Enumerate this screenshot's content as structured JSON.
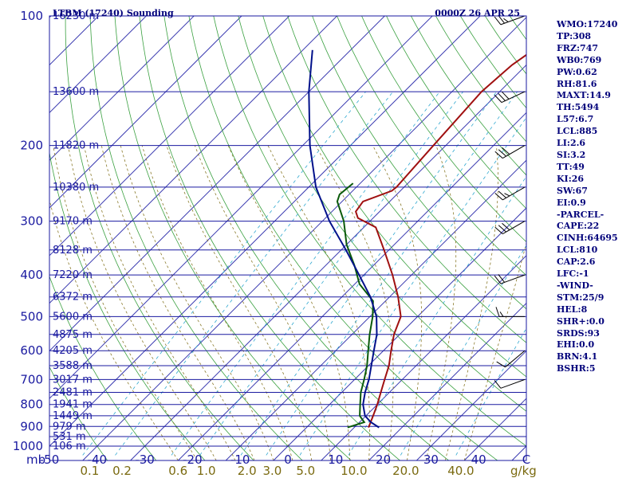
{
  "header": {
    "station": "LTBM (17240) Sounding",
    "time": "0000Z 26 APR 25"
  },
  "params": [
    "WMO:17240",
    "TP:308",
    "FRZ:747",
    "WB0:769",
    "PW:0.62",
    "RH:81.6",
    "MAXT:14.9",
    "TH:5494",
    "L57:6.7",
    "LCL:885",
    "LI:2.6",
    "SI:3.2",
    "TT:49",
    "KI:26",
    "SW:67",
    "EI:0.9",
    "-PARCEL-",
    "CAPE:22",
    "CINH:64695",
    "LCL:810",
    "CAP:2.6",
    "LFC:-1",
    "-WIND-",
    "STM:25/9",
    "HEL:8",
    "SHR+:0.0",
    "SRDS:93",
    "EHI:0.0",
    "BRN:4.1",
    "BSHR:5"
  ],
  "colors": {
    "isobar": "#1a1aa0",
    "isotherm": "#3a3ab0",
    "dry_adiabat": "#3aa040",
    "moist_adiabat": "#8a7a2a",
    "mixing_ratio": "#30a8d0",
    "temperature": "#a01010",
    "dewpoint": "#0a5a0a",
    "parcel": "#00108a",
    "wind": "#000000"
  },
  "chart_data": {
    "type": "line",
    "title": "LTBM (17240) Sounding",
    "subtitle": "0000Z 26 APR 25",
    "xlabel": "",
    "ylabel": "mb",
    "log_y": true,
    "skew_t": true,
    "grid": true,
    "xlim": [
      -50,
      50
    ],
    "ylim": [
      1000,
      100
    ],
    "pressure_ticks": [
      {
        "p": 100,
        "label": "100"
      },
      {
        "p": 200,
        "label": "200"
      },
      {
        "p": 300,
        "label": "300"
      },
      {
        "p": 400,
        "label": "400"
      },
      {
        "p": 500,
        "label": "500"
      },
      {
        "p": 600,
        "label": "600"
      },
      {
        "p": 700,
        "label": "700"
      },
      {
        "p": 800,
        "label": "800"
      },
      {
        "p": 900,
        "label": "900"
      },
      {
        "p": 1000,
        "label": "1000"
      }
    ],
    "temperature_ticks": [
      {
        "t": -50,
        "label": "-50"
      },
      {
        "t": -40,
        "label": "-40"
      },
      {
        "t": -30,
        "label": "-30"
      },
      {
        "t": -20,
        "label": "-20"
      },
      {
        "t": -10,
        "label": "-10"
      },
      {
        "t": 0,
        "label": "0"
      },
      {
        "t": 10,
        "label": "10"
      },
      {
        "t": 20,
        "label": "20"
      },
      {
        "t": 30,
        "label": "30"
      },
      {
        "t": 40,
        "label": "40"
      },
      {
        "t": 50,
        "label": "C"
      }
    ],
    "altitude_labels": [
      {
        "p": 100,
        "label": "16230 m"
      },
      {
        "p": 150,
        "label": "13600 m"
      },
      {
        "p": 200,
        "label": "11820 m"
      },
      {
        "p": 250,
        "label": "10380 m"
      },
      {
        "p": 300,
        "label": "9170 m"
      },
      {
        "p": 350,
        "label": "8128 m"
      },
      {
        "p": 400,
        "label": "7220 m"
      },
      {
        "p": 450,
        "label": "6372 m"
      },
      {
        "p": 500,
        "label": "5600 m"
      },
      {
        "p": 550,
        "label": "4875 m"
      },
      {
        "p": 600,
        "label": "4205 m"
      },
      {
        "p": 650,
        "label": "3588 m"
      },
      {
        "p": 700,
        "label": "3017 m"
      },
      {
        "p": 750,
        "label": "2481 m"
      },
      {
        "p": 800,
        "label": "1941 m"
      },
      {
        "p": 850,
        "label": "1449 m"
      },
      {
        "p": 900,
        "label": "979 m"
      },
      {
        "p": 950,
        "label": "531 m"
      },
      {
        "p": 1000,
        "label": "106 m"
      }
    ],
    "mixing_ratio_labels": [
      {
        "w": 0.1,
        "label": "0.1"
      },
      {
        "w": 0.2,
        "label": "0.2"
      },
      {
        "w": 0.6,
        "label": "0.6"
      },
      {
        "w": 1.0,
        "label": "1.0"
      },
      {
        "w": 2.0,
        "label": "2.0"
      },
      {
        "w": 3.0,
        "label": "3.0"
      },
      {
        "w": 5.0,
        "label": "5.0"
      },
      {
        "w": 10.0,
        "label": "10.0"
      },
      {
        "w": 20.0,
        "label": "20.0"
      },
      {
        "w": 40.0,
        "label": "40.0"
      }
    ],
    "mixing_ratio_unit": "g/kg",
    "series": [
      {
        "key": "temperature",
        "points": [
          [
            905,
            13.0
          ],
          [
            850,
            11.5
          ],
          [
            800,
            10.0
          ],
          [
            750,
            8.2
          ],
          [
            700,
            6.3
          ],
          [
            650,
            4.3
          ],
          [
            600,
            1.6
          ],
          [
            550,
            -1.2
          ],
          [
            500,
            -3.5
          ],
          [
            450,
            -8.2
          ],
          [
            400,
            -14.0
          ],
          [
            350,
            -21.0
          ],
          [
            310,
            -27.5
          ],
          [
            295,
            -33.2
          ],
          [
            285,
            -35.0
          ],
          [
            270,
            -35.6
          ],
          [
            255,
            -31.8
          ],
          [
            250,
            -31.6
          ],
          [
            200,
            -32.6
          ],
          [
            150,
            -33.8
          ],
          [
            130,
            -33.0
          ],
          [
            115,
            -31.0
          ],
          [
            100,
            -27.0
          ]
        ]
      },
      {
        "key": "dewpoint",
        "points": [
          [
            905,
            8.6
          ],
          [
            880,
            11.0
          ],
          [
            850,
            8.7
          ],
          [
            800,
            6.4
          ],
          [
            750,
            4.0
          ],
          [
            700,
            2.0
          ],
          [
            650,
            -0.3
          ],
          [
            600,
            -3.2
          ],
          [
            550,
            -6.3
          ],
          [
            500,
            -9.4
          ],
          [
            460,
            -12.6
          ],
          [
            420,
            -19.0
          ],
          [
            380,
            -24.0
          ],
          [
            340,
            -30.0
          ],
          [
            300,
            -35.5
          ],
          [
            270,
            -41.0
          ],
          [
            260,
            -42.0
          ],
          [
            245,
            -41.5
          ]
        ]
      },
      {
        "key": "parcel",
        "points": [
          [
            905,
            15.2
          ],
          [
            880,
            12.4
          ],
          [
            850,
            9.8
          ],
          [
            800,
            7.0
          ],
          [
            750,
            4.9
          ],
          [
            700,
            3.0
          ],
          [
            650,
            0.6
          ],
          [
            600,
            -2.0
          ],
          [
            550,
            -4.8
          ],
          [
            500,
            -8.6
          ],
          [
            450,
            -14.0
          ],
          [
            400,
            -21.0
          ],
          [
            350,
            -29.0
          ],
          [
            300,
            -38.5
          ],
          [
            250,
            -48.5
          ],
          [
            200,
            -58.5
          ],
          [
            150,
            -70.0
          ],
          [
            120,
            -78.0
          ]
        ]
      }
    ],
    "wind_barbs": [
      {
        "p": 700,
        "dir": 250,
        "kt": 10
      },
      {
        "p": 600,
        "dir": 230,
        "kt": 10
      },
      {
        "p": 500,
        "dir": 270,
        "kt": 15
      },
      {
        "p": 400,
        "dir": 250,
        "kt": 20
      },
      {
        "p": 300,
        "dir": 240,
        "kt": 30
      },
      {
        "p": 250,
        "dir": 240,
        "kt": 25
      },
      {
        "p": 200,
        "dir": 240,
        "kt": 30
      },
      {
        "p": 150,
        "dir": 245,
        "kt": 30
      },
      {
        "p": 100,
        "dir": 250,
        "kt": 25
      }
    ]
  }
}
